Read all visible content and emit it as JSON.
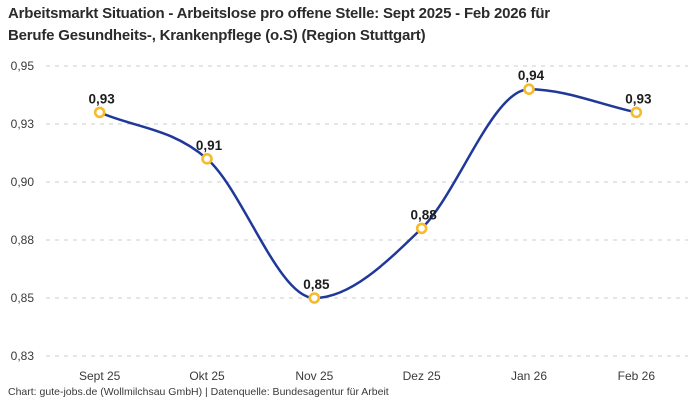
{
  "header": {
    "title_lines": [
      "Arbeitsmarkt Situation - Arbeitslose pro offene Stelle: Sept 2025 - Feb 2026 für",
      "Berufe Gesundheits-, Krankenpflege (o.S) (Region Stuttgart)"
    ]
  },
  "footer": {
    "text": "Chart: gute-jobs.de (Wollmilchsau GmbH) | Datenquelle: Bundesagentur für Arbeit"
  },
  "chart_data": {
    "type": "line",
    "title": "Arbeitsmarkt Situation - Arbeitslose pro offene Stelle: Sept 2025 - Feb 2026 für Berufe Gesundheits-, Krankenpflege (o.S) (Region Stuttgart)",
    "categories": [
      "Sept 25",
      "Okt 25",
      "Nov 25",
      "Dez 25",
      "Jan 26",
      "Feb 26"
    ],
    "values": [
      0.93,
      0.91,
      0.85,
      0.88,
      0.94,
      0.93
    ],
    "point_labels": [
      "0,93",
      "0,91",
      "0,85",
      "0,88",
      "0,94",
      "0,93"
    ],
    "y_ticks": [
      0.95,
      0.925,
      0.9,
      0.875,
      0.85,
      0.825
    ],
    "y_tick_labels": [
      "0,95",
      "0,93",
      "0,90",
      "0,88",
      "0,85",
      "0,83"
    ],
    "ylim": [
      0.825,
      0.95
    ],
    "xlabel": "",
    "ylabel": "",
    "grid": "horizontal-dashed",
    "legend": "none",
    "curve": "smooth-monotone",
    "colors": {
      "line": "#1f3899",
      "marker_ring": "#f7ba2a",
      "marker_fill": "#ffffff",
      "grid": "#cccccc",
      "axis_text": "#3a3a3a",
      "point_label_text": "#1d1d1d",
      "title_text": "#2b2b2b"
    }
  }
}
